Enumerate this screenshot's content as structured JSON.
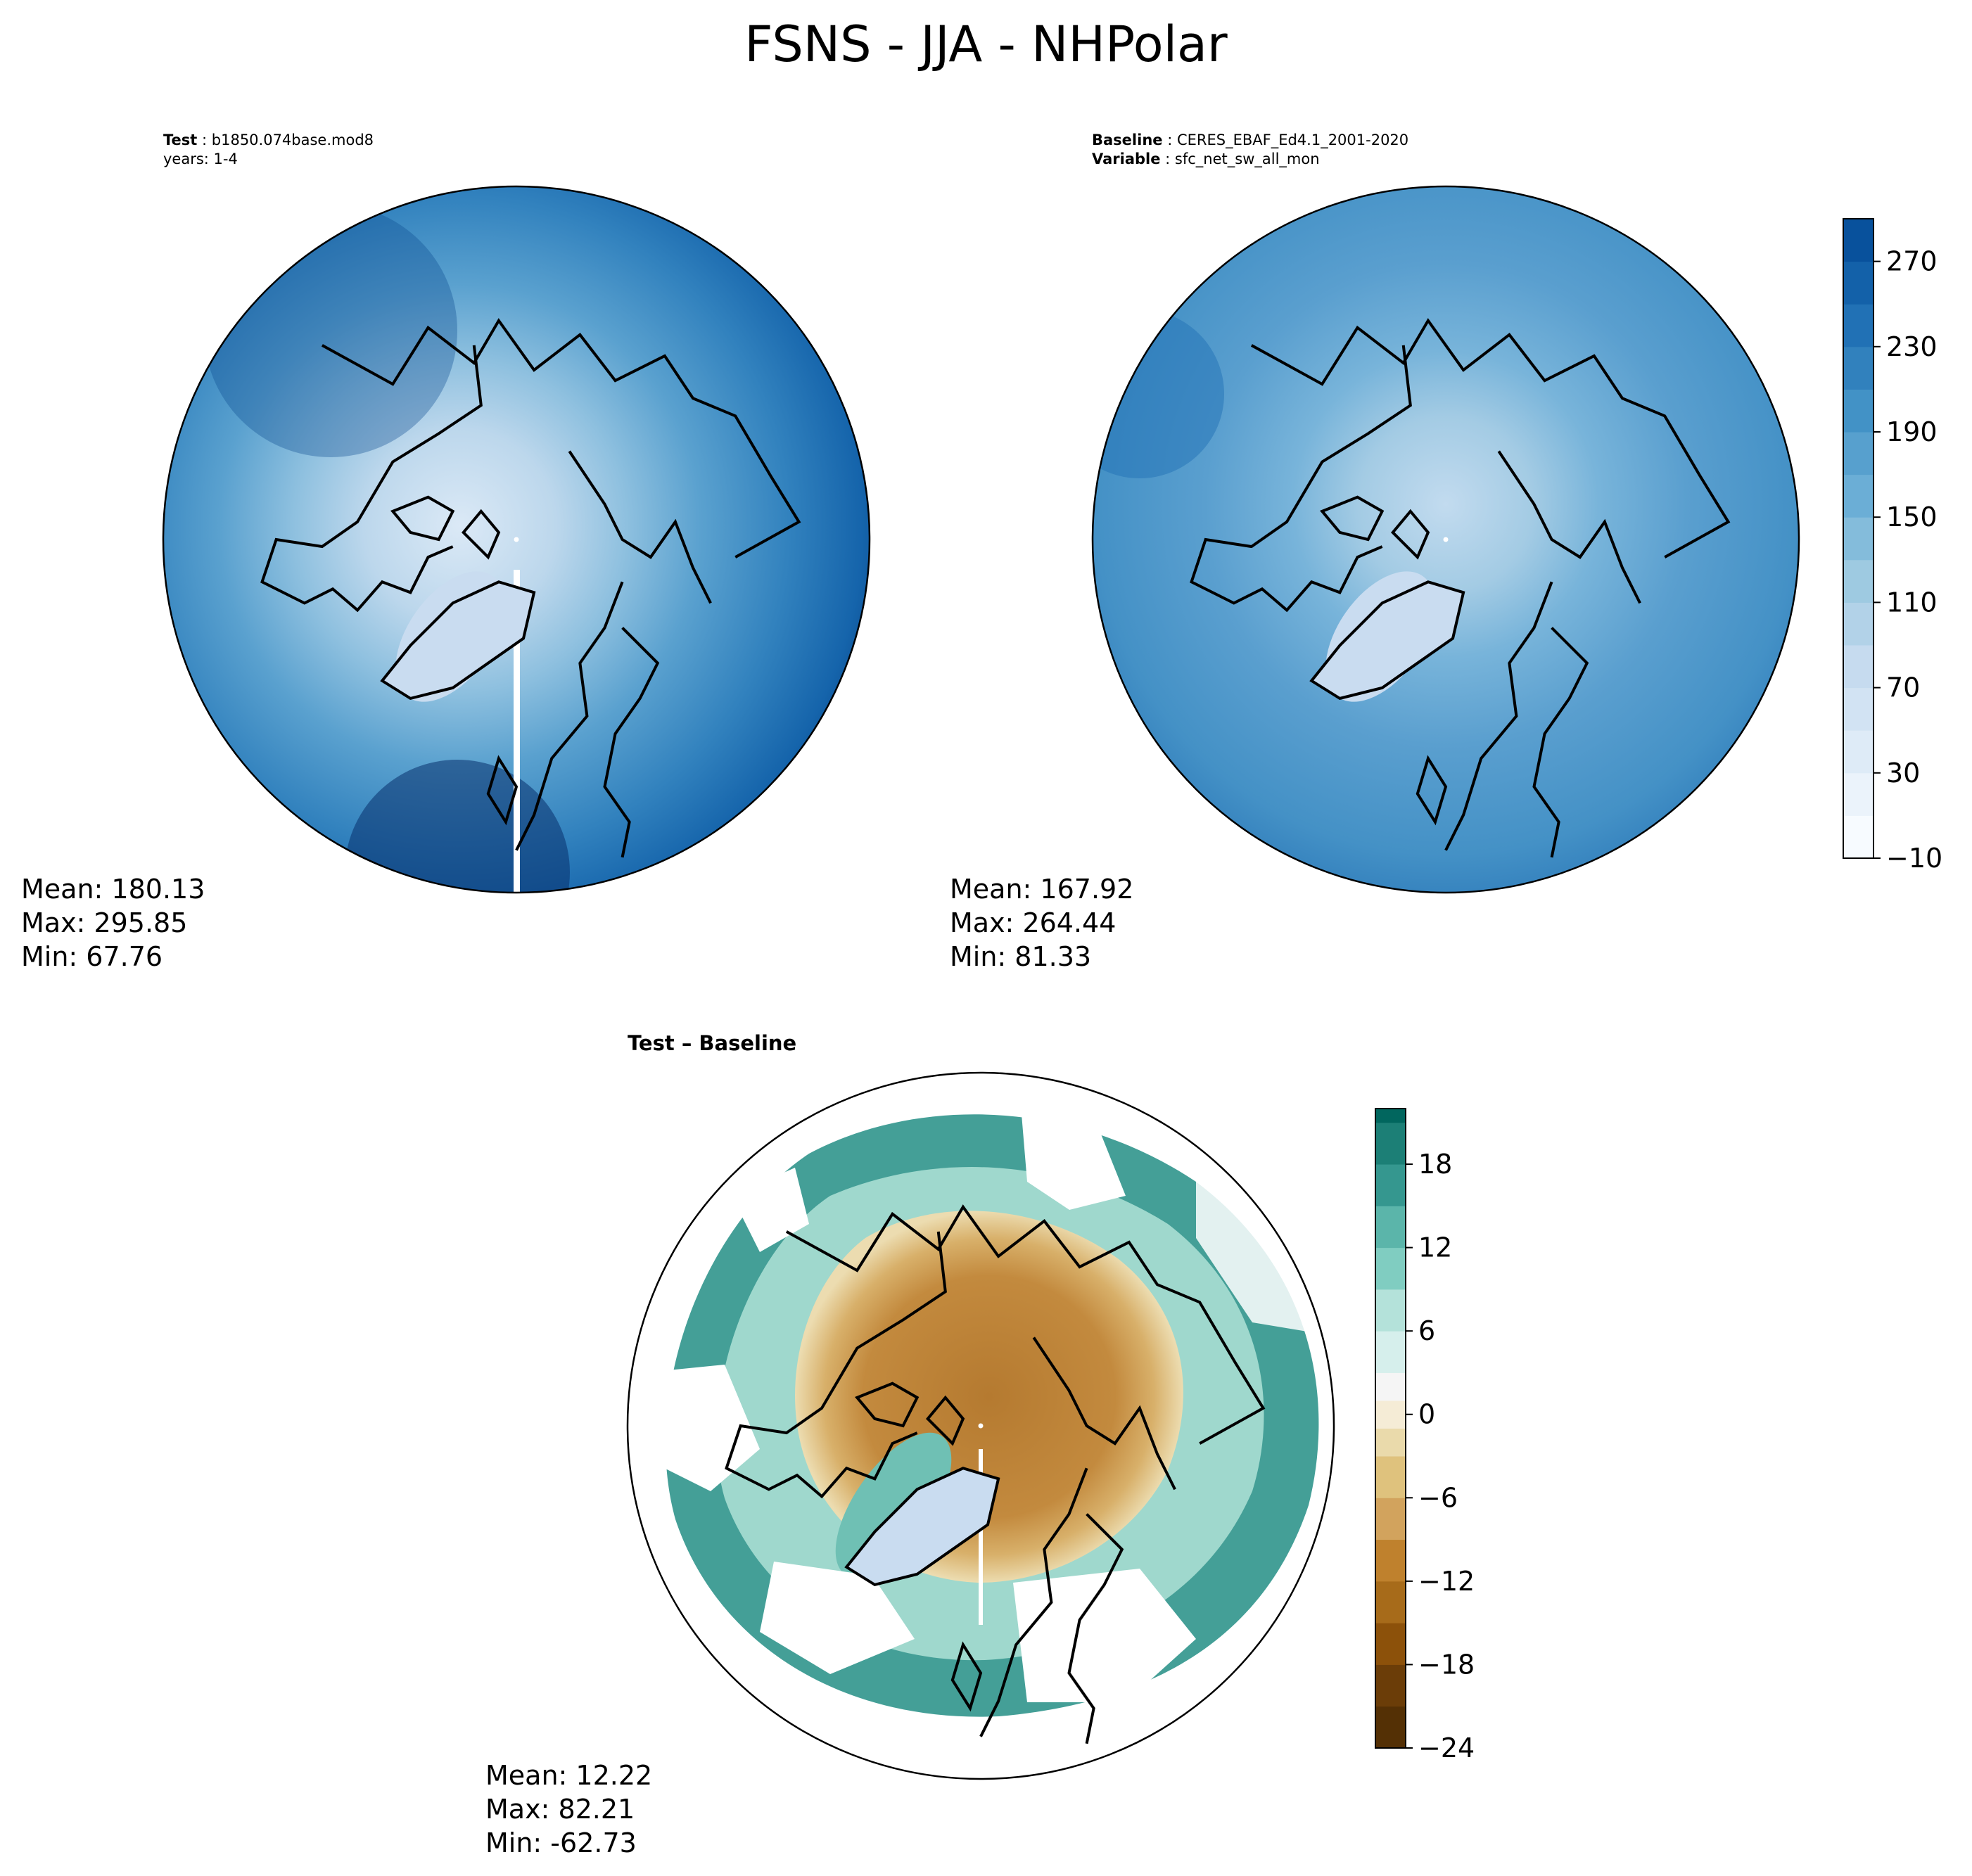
{
  "figure": {
    "title": "FSNS - JJA - NHPolar"
  },
  "panels": {
    "test": {
      "label": "Test",
      "name": "b1850.074base.mod8",
      "years": "years: 1-4",
      "mean": "Mean: 180.13",
      "max": "Max: 295.85",
      "min": "Min: 67.76"
    },
    "baseline": {
      "label": "Baseline",
      "name": "CERES_EBAF_Ed4.1_2001-2020",
      "variable_label": "Variable",
      "variable": "sfc_net_sw_all_mon",
      "mean": "Mean: 167.92",
      "max": "Max: 264.44",
      "min": "Min: 81.33"
    },
    "diff": {
      "title": "Test – Baseline",
      "mean": "Mean: 12.22",
      "max": "Max: 82.21",
      "min": "Min: -62.73"
    }
  },
  "colors": {
    "blues": [
      "#f7fbff",
      "#ebf3fb",
      "#deebf7",
      "#d2e3f3",
      "#c6dbef",
      "#b2d2e8",
      "#9ecae1",
      "#84bcdb",
      "#6baed6",
      "#57a0ce",
      "#4292c6",
      "#3181bd",
      "#2171b5",
      "#1361a9",
      "#08519c",
      "#08458a",
      "#08306b"
    ],
    "brbg": [
      "#543005",
      "#6b3d08",
      "#8c510a",
      "#a76b1a",
      "#bf812d",
      "#d2a35d",
      "#dfc27d",
      "#eadaab",
      "#f5ecd6",
      "#f5f5f5",
      "#d6efec",
      "#b4e2da",
      "#80cdc1",
      "#5bb5aa",
      "#35978f",
      "#1c7f76",
      "#01665e",
      "#00493f",
      "#003c30"
    ]
  },
  "chart_data": [
    {
      "type": "heatmap",
      "panel": "test",
      "projection": "north polar stereographic",
      "colorbar": "shared",
      "range": [
        -10,
        290
      ],
      "stats": {
        "mean": 180.13,
        "max": 295.85,
        "min": 67.76
      }
    },
    {
      "type": "heatmap",
      "panel": "baseline",
      "projection": "north polar stereographic",
      "colorbar": {
        "levels": [
          -10,
          10,
          30,
          50,
          70,
          90,
          110,
          130,
          150,
          170,
          190,
          210,
          230,
          250,
          270,
          290
        ],
        "tick_labels": [
          "−10",
          "30",
          "70",
          "110",
          "150",
          "190",
          "230",
          "270"
        ],
        "ticks": [
          -10,
          30,
          70,
          110,
          150,
          190,
          230,
          270
        ],
        "range": [
          -10,
          290
        ],
        "colormap": "Blues"
      },
      "stats": {
        "mean": 167.92,
        "max": 264.44,
        "min": 81.33
      }
    },
    {
      "type": "heatmap",
      "panel": "diff",
      "projection": "north polar stereographic",
      "colorbar": {
        "levels": [
          -24,
          -21,
          -18,
          -15,
          -12,
          -9,
          -6,
          -3,
          -1,
          1,
          3,
          6,
          9,
          12,
          15,
          18,
          21
        ],
        "tick_labels": [
          "−24",
          "−18",
          "−12",
          "−6",
          "0",
          "6",
          "12",
          "18"
        ],
        "ticks": [
          -24,
          -18,
          -12,
          -6,
          0,
          6,
          12,
          18
        ],
        "range": [
          -24,
          22
        ],
        "colormap": "BrBG"
      },
      "stats": {
        "mean": 12.22,
        "max": 82.21,
        "min": -62.73
      }
    }
  ]
}
